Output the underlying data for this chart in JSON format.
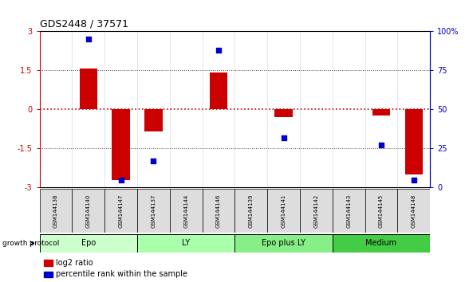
{
  "title": "GDS2448 / 37571",
  "samples": [
    "GSM144138",
    "GSM144140",
    "GSM144147",
    "GSM144137",
    "GSM144144",
    "GSM144146",
    "GSM144139",
    "GSM144141",
    "GSM144142",
    "GSM144143",
    "GSM144145",
    "GSM144148"
  ],
  "log2_ratio": [
    0.0,
    1.55,
    -2.7,
    -0.85,
    0.0,
    1.4,
    0.0,
    -0.3,
    0.0,
    0.0,
    -0.25,
    -2.5
  ],
  "percentile_rank": [
    null,
    95,
    5,
    17,
    null,
    88,
    null,
    32,
    null,
    null,
    27,
    5
  ],
  "ylim": [
    -3,
    3
  ],
  "y_ticks_left": [
    -3,
    -1.5,
    0,
    1.5,
    3
  ],
  "y_ticks_right": [
    0,
    25,
    50,
    75,
    100
  ],
  "groups": [
    {
      "label": "Epo",
      "start": 0,
      "end": 3,
      "color": "#ccffcc"
    },
    {
      "label": "LY",
      "start": 3,
      "end": 6,
      "color": "#aaffaa"
    },
    {
      "label": "Epo plus LY",
      "start": 6,
      "end": 9,
      "color": "#88ee88"
    },
    {
      "label": "Medium",
      "start": 9,
      "end": 12,
      "color": "#44cc44"
    }
  ],
  "bar_color": "#cc0000",
  "dot_color": "#0000cc",
  "bar_width": 0.55,
  "dot_size": 25,
  "growth_protocol_label": "growth protocol",
  "legend_log2": "log2 ratio",
  "legend_pct": "percentile rank within the sample",
  "zero_line_color": "#cc0000",
  "dotted_line_color": "#444444",
  "right_axis_color": "#0000cc",
  "left_axis_color": "#cc0000",
  "sample_box_color": "#dddddd",
  "title_fontsize": 9,
  "tick_fontsize": 7,
  "sample_fontsize": 5,
  "group_fontsize": 7,
  "legend_fontsize": 7
}
